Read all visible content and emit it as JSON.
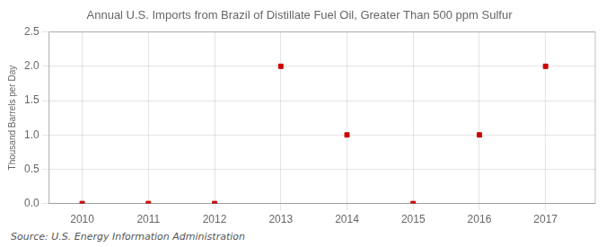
{
  "chart_data": {
    "type": "scatter",
    "title": "Annual U.S. Imports from Brazil of Distillate Fuel Oil, Greater Than 500 ppm Sulfur",
    "ylabel": "Thousand Barrels per Day",
    "source": "Source: U.S. Energy Information Administration",
    "x": [
      2010,
      2011,
      2012,
      2013,
      2014,
      2015,
      2016,
      2017
    ],
    "values": [
      0,
      0,
      0,
      2,
      1,
      0,
      1,
      2
    ],
    "color": "#CC0000",
    "marker": "square",
    "xlim": [
      2009.5,
      2017.75
    ],
    "xticks": [
      2010,
      2011,
      2012,
      2013,
      2014,
      2015,
      2016,
      2017
    ],
    "ylim": [
      0.0,
      2.5
    ],
    "yticks": [
      {
        "value": 0.0,
        "label": "0.0"
      },
      {
        "value": 0.5,
        "label": "0.5"
      },
      {
        "value": 1.0,
        "label": "1.0"
      },
      {
        "value": 1.5,
        "label": "1.5"
      },
      {
        "value": 2.0,
        "label": "2.0"
      },
      {
        "value": 2.5,
        "label": "2.5"
      }
    ],
    "grid": true
  }
}
